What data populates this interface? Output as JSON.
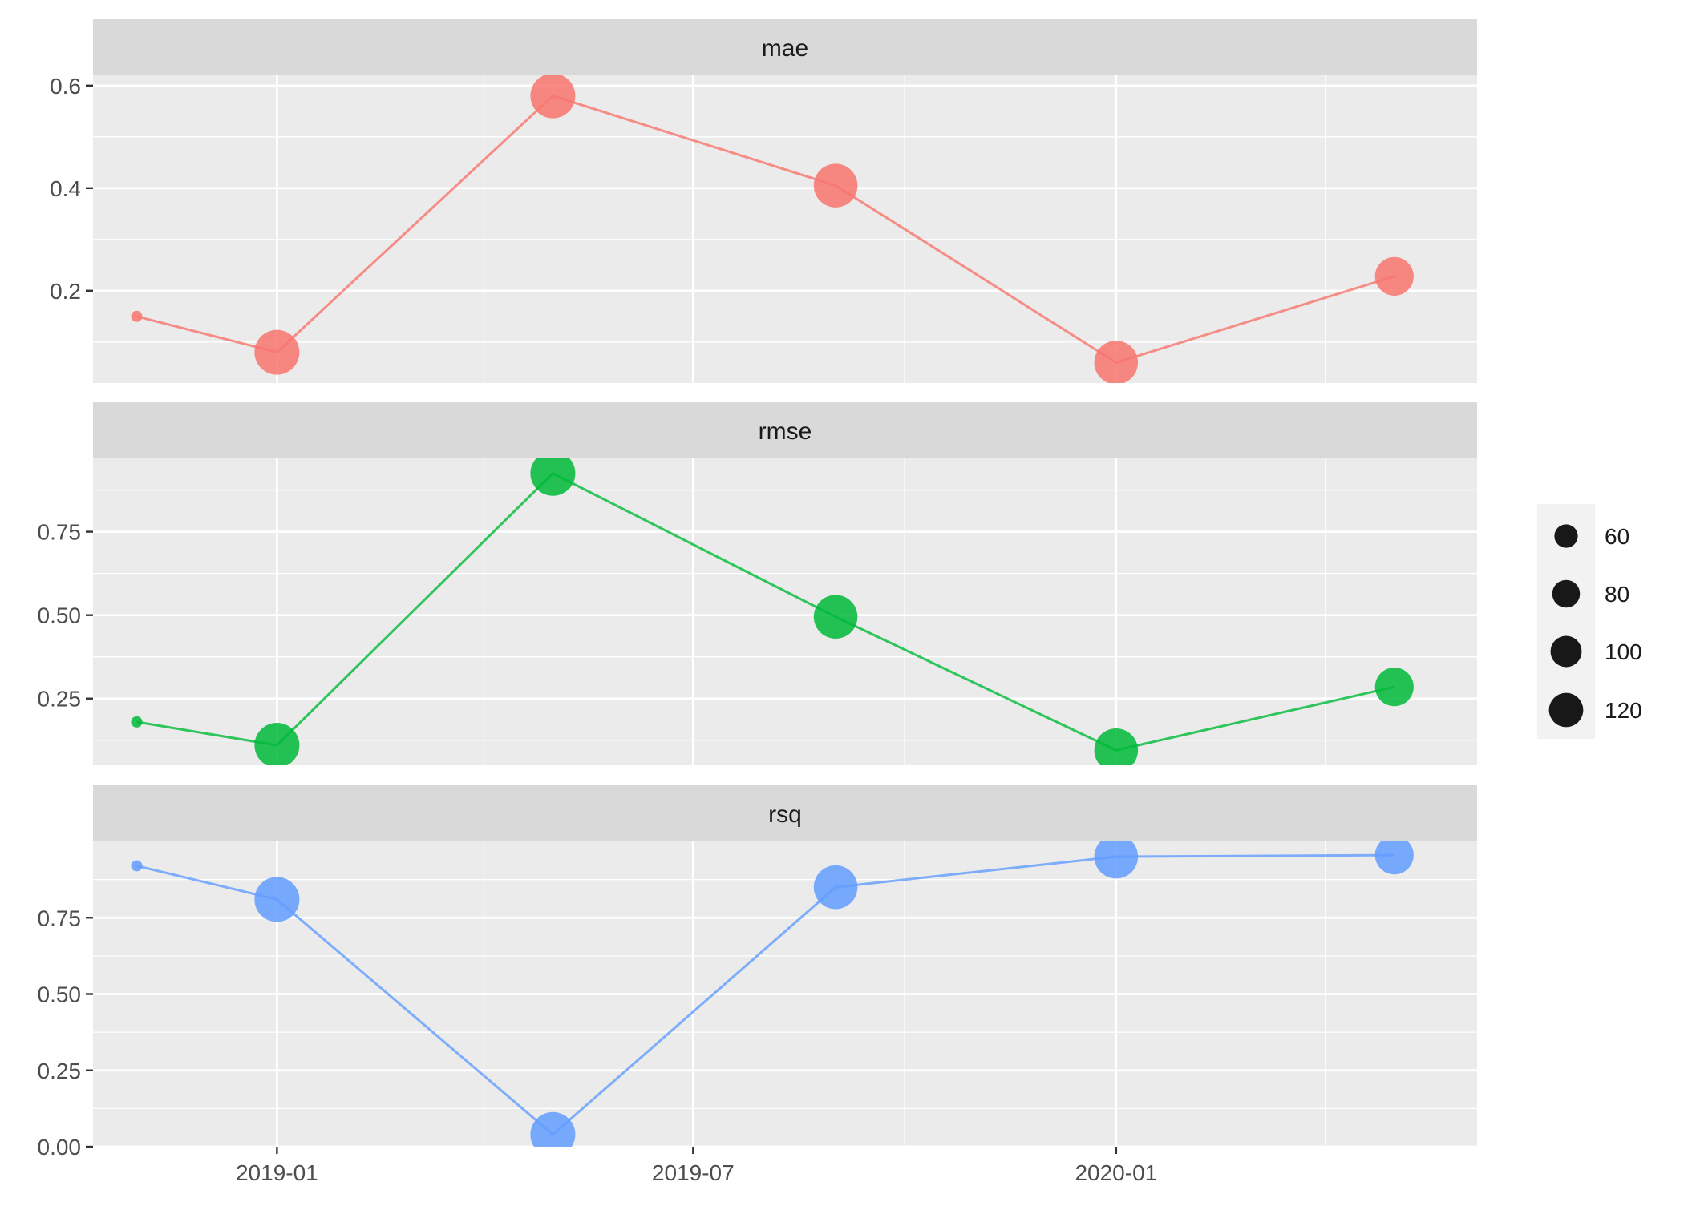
{
  "chart_data": {
    "type": "line",
    "facet_by": "metric",
    "x_axis": {
      "type": "date",
      "tick_labels": [
        "2019-01",
        "2019-07",
        "2020-01"
      ],
      "tick_dates": [
        "2019-01-01",
        "2019-07-01",
        "2020-01-01"
      ],
      "minor_dates": [
        "2019-04-01",
        "2019-10-01",
        "2020-04-01"
      ],
      "range": [
        "2018-10-13",
        "2020-06-06"
      ]
    },
    "x": [
      "2018-11-01",
      "2019-01-01",
      "2019-05-01",
      "2019-09-01",
      "2020-01-01",
      "2020-05-01"
    ],
    "size_legend": {
      "labels": [
        "60",
        "80",
        "100",
        "120"
      ],
      "values": [
        60,
        80,
        100,
        120
      ],
      "placement": "right"
    },
    "grid": true,
    "panels": [
      {
        "name": "mae",
        "color": "#F8766D",
        "ylim": [
          0.02,
          0.62
        ],
        "yticks": [
          0.2,
          0.4,
          0.6
        ],
        "yticklabels": [
          "0.2",
          "0.4",
          "0.6"
        ],
        "y_minor": [
          0.1,
          0.3,
          0.5
        ],
        "values": [
          0.15,
          0.08,
          0.58,
          0.405,
          0.06,
          0.228
        ],
        "sizes": [
          30,
          120,
          120,
          115,
          115,
          95
        ]
      },
      {
        "name": "rmse",
        "color": "#00BA38",
        "ylim": [
          0.05,
          0.97
        ],
        "yticks": [
          0.25,
          0.5,
          0.75
        ],
        "yticklabels": [
          "0.25",
          "0.50",
          "0.75"
        ],
        "y_minor": [
          0.125,
          0.375,
          0.625,
          0.875
        ],
        "values": [
          0.18,
          0.11,
          0.925,
          0.495,
          0.095,
          0.285
        ],
        "sizes": [
          30,
          120,
          120,
          115,
          115,
          95
        ]
      },
      {
        "name": "rsq",
        "color": "#619CFF",
        "ylim": [
          0.0,
          1.0
        ],
        "yticks": [
          0.0,
          0.25,
          0.5,
          0.75
        ],
        "yticklabels": [
          "0.00",
          "0.25",
          "0.50",
          "0.75"
        ],
        "y_minor": [
          0.125,
          0.375,
          0.625,
          0.875
        ],
        "values": [
          0.92,
          0.81,
          0.04,
          0.85,
          0.95,
          0.955
        ],
        "sizes": [
          30,
          120,
          120,
          115,
          115,
          95
        ]
      }
    ]
  }
}
